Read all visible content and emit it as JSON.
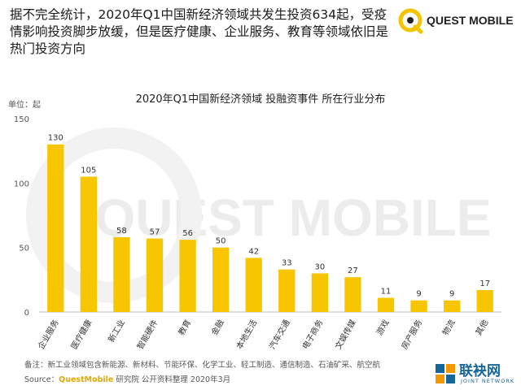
{
  "headline": "据不完全统计，2020年Q1中国新经济领域共发生投资634起，受疫情影响投资脚步放缓，但是医疗健康、企业服务、教育等领域依旧是热门投资方向",
  "logo": {
    "text": "QUEST MOBILE",
    "accent": "#f5c400"
  },
  "watermark": "QUEST MOBILE",
  "chart_data": {
    "type": "bar",
    "title": "2020年Q1中国新经济领域 投融资事件 所在行业分布",
    "unit_label": "单位：起",
    "categories": [
      "企业服务",
      "医疗健康",
      "新工业",
      "智能硬件",
      "教育",
      "金融",
      "本地生活",
      "汽车交通",
      "电子商务",
      "文娱传媒",
      "游戏",
      "房产服务",
      "物流",
      "其他"
    ],
    "values": [
      130,
      105,
      58,
      57,
      56,
      50,
      42,
      33,
      30,
      27,
      11,
      9,
      9,
      17
    ],
    "ylim": [
      0,
      150
    ],
    "yticks": [
      0,
      50,
      100,
      150
    ],
    "bar_color": "#f7c600",
    "grid": false,
    "legend": false
  },
  "note": "备注：新工业领域包含新能源、新材料、节能环保、化学工业、轻工制造、通信制造、石油矿采、航空航",
  "source": {
    "prefix": "Source：",
    "brand": "QuestMobile",
    "suffix": " 研究院 公开资料整理 2020年3月"
  },
  "badge": {
    "cn": "联袂网",
    "en": "JOINT NETWORK",
    "color": "#17669a"
  }
}
